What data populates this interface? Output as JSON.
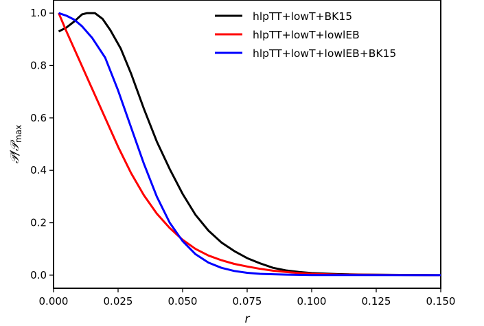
{
  "chart_data": {
    "type": "line",
    "xlabel": "r",
    "ylabel_parts": {
      "main": "𝒫/𝒫",
      "sub": "max"
    },
    "xlim": [
      0.0,
      0.15
    ],
    "ylim": [
      -0.05,
      1.05
    ],
    "grid": false,
    "legend_position": "top-right",
    "x_ticks": [
      "0.000",
      "0.025",
      "0.050",
      "0.075",
      "0.100",
      "0.125",
      "0.150"
    ],
    "y_ticks": [
      "0.0",
      "0.2",
      "0.4",
      "0.6",
      "0.8",
      "1.0"
    ],
    "series": [
      {
        "name": "hlpTT+lowT+BK15",
        "color": "#000000",
        "points": [
          [
            0.002,
            0.93
          ],
          [
            0.005,
            0.945
          ],
          [
            0.008,
            0.968
          ],
          [
            0.011,
            0.995
          ],
          [
            0.013,
            1.0
          ],
          [
            0.016,
            1.0
          ],
          [
            0.019,
            0.978
          ],
          [
            0.022,
            0.935
          ],
          [
            0.026,
            0.865
          ],
          [
            0.03,
            0.77
          ],
          [
            0.035,
            0.635
          ],
          [
            0.04,
            0.51
          ],
          [
            0.045,
            0.405
          ],
          [
            0.05,
            0.31
          ],
          [
            0.055,
            0.23
          ],
          [
            0.06,
            0.17
          ],
          [
            0.065,
            0.125
          ],
          [
            0.07,
            0.092
          ],
          [
            0.075,
            0.065
          ],
          [
            0.08,
            0.045
          ],
          [
            0.085,
            0.028
          ],
          [
            0.09,
            0.018
          ],
          [
            0.095,
            0.012
          ],
          [
            0.1,
            0.008
          ],
          [
            0.11,
            0.004
          ],
          [
            0.12,
            0.002
          ],
          [
            0.15,
            0.0
          ]
        ]
      },
      {
        "name": "hlpTT+lowT+lowlEB",
        "color": "#ff0000",
        "points": [
          [
            0.002,
            1.0
          ],
          [
            0.005,
            0.93
          ],
          [
            0.01,
            0.82
          ],
          [
            0.015,
            0.71
          ],
          [
            0.02,
            0.6
          ],
          [
            0.025,
            0.49
          ],
          [
            0.03,
            0.39
          ],
          [
            0.035,
            0.305
          ],
          [
            0.04,
            0.235
          ],
          [
            0.045,
            0.18
          ],
          [
            0.05,
            0.135
          ],
          [
            0.055,
            0.1
          ],
          [
            0.06,
            0.075
          ],
          [
            0.065,
            0.057
          ],
          [
            0.07,
            0.043
          ],
          [
            0.075,
            0.033
          ],
          [
            0.08,
            0.024
          ],
          [
            0.085,
            0.017
          ],
          [
            0.09,
            0.012
          ],
          [
            0.095,
            0.008
          ],
          [
            0.1,
            0.005
          ],
          [
            0.11,
            0.002
          ],
          [
            0.15,
            0.0
          ]
        ]
      },
      {
        "name": "hlpTT+lowT+lowlEB+BK15",
        "color": "#0000ff",
        "points": [
          [
            0.002,
            1.0
          ],
          [
            0.005,
            0.99
          ],
          [
            0.008,
            0.975
          ],
          [
            0.011,
            0.95
          ],
          [
            0.015,
            0.905
          ],
          [
            0.02,
            0.83
          ],
          [
            0.025,
            0.705
          ],
          [
            0.03,
            0.565
          ],
          [
            0.035,
            0.425
          ],
          [
            0.04,
            0.3
          ],
          [
            0.045,
            0.2
          ],
          [
            0.05,
            0.13
          ],
          [
            0.055,
            0.08
          ],
          [
            0.06,
            0.048
          ],
          [
            0.065,
            0.028
          ],
          [
            0.07,
            0.016
          ],
          [
            0.075,
            0.009
          ],
          [
            0.08,
            0.005
          ],
          [
            0.09,
            0.002
          ],
          [
            0.1,
            0.0005
          ],
          [
            0.15,
            0.0
          ]
        ]
      }
    ]
  }
}
